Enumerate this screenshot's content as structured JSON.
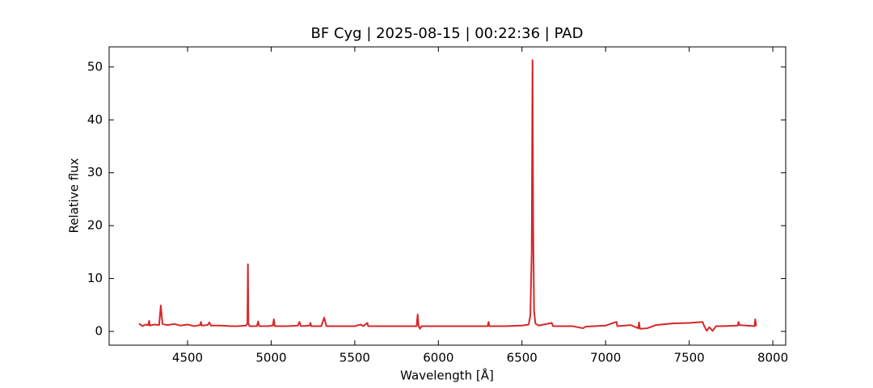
{
  "chart_data": {
    "type": "line",
    "title": "BF Cyg | 2025-08-15 | 00:22:36 | PAD",
    "x_label": "Wavelength [Å]",
    "y_label": "Relative flux",
    "xlim": [
      4031,
      8077
    ],
    "ylim": [
      -2.6,
      53.8
    ],
    "xticks": [
      4500,
      5000,
      5500,
      6000,
      6500,
      7000,
      7500,
      8000
    ],
    "yticks": [
      0,
      10,
      20,
      30,
      40,
      50
    ],
    "grid": false,
    "series": [
      {
        "name": "BF Cyg",
        "color": "#d62728",
        "x": [
          4210,
          4230,
          4250,
          4265,
          4270,
          4275,
          4300,
          4330,
          4340,
          4350,
          4380,
          4420,
          4460,
          4500,
          4540,
          4575,
          4580,
          4585,
          4620,
          4630,
          4640,
          4700,
          4760,
          4800,
          4850,
          4858,
          4861,
          4864,
          4870,
          4915,
          4922,
          4929,
          4980,
          5010,
          5016,
          5022,
          5100,
          5160,
          5169,
          5178,
          5230,
          5235,
          5240,
          5300,
          5317,
          5330,
          5400,
          5500,
          5535,
          5550,
          5575,
          5580,
          5700,
          5800,
          5870,
          5876,
          5882,
          5890,
          5900,
          6000,
          6100,
          6200,
          6295,
          6300,
          6305,
          6400,
          6500,
          6540,
          6550,
          6558,
          6563,
          6567,
          6572,
          6580,
          6600,
          6678,
          6685,
          6800,
          6865,
          6880,
          7000,
          7065,
          7070,
          7150,
          7195,
          7200,
          7205,
          7250,
          7300,
          7400,
          7500,
          7580,
          7590,
          7605,
          7620,
          7640,
          7660,
          7700,
          7790,
          7795,
          7800,
          7890,
          7895,
          7900
        ],
        "values": [
          1.5,
          1.0,
          1.3,
          1.2,
          2.0,
          1.1,
          1.3,
          1.2,
          4.9,
          1.4,
          1.2,
          1.4,
          1.1,
          1.3,
          1.0,
          1.2,
          1.8,
          1.1,
          1.2,
          1.7,
          1.1,
          1.1,
          1.0,
          1.0,
          1.1,
          1.5,
          12.7,
          1.5,
          1.0,
          1.0,
          1.9,
          1.0,
          1.0,
          1.1,
          2.3,
          1.0,
          1.0,
          1.1,
          1.8,
          1.0,
          1.1,
          1.6,
          1.0,
          1.0,
          2.6,
          1.0,
          1.0,
          1.0,
          1.3,
          1.0,
          1.6,
          1.0,
          1.0,
          1.0,
          1.0,
          3.2,
          1.0,
          0.5,
          1.0,
          1.0,
          1.0,
          1.0,
          1.0,
          1.8,
          1.0,
          1.0,
          1.1,
          1.3,
          3.0,
          15,
          51.3,
          20,
          4,
          1.5,
          1.1,
          1.6,
          1.0,
          1.0,
          0.6,
          0.9,
          1.1,
          1.8,
          1.0,
          1.2,
          0.6,
          1.7,
          0.5,
          0.6,
          1.2,
          1.5,
          1.6,
          1.8,
          1.0,
          0.1,
          0.8,
          0.1,
          1.0,
          1.0,
          1.1,
          1.8,
          1.2,
          1.0,
          2.3,
          1.0
        ]
      }
    ]
  }
}
